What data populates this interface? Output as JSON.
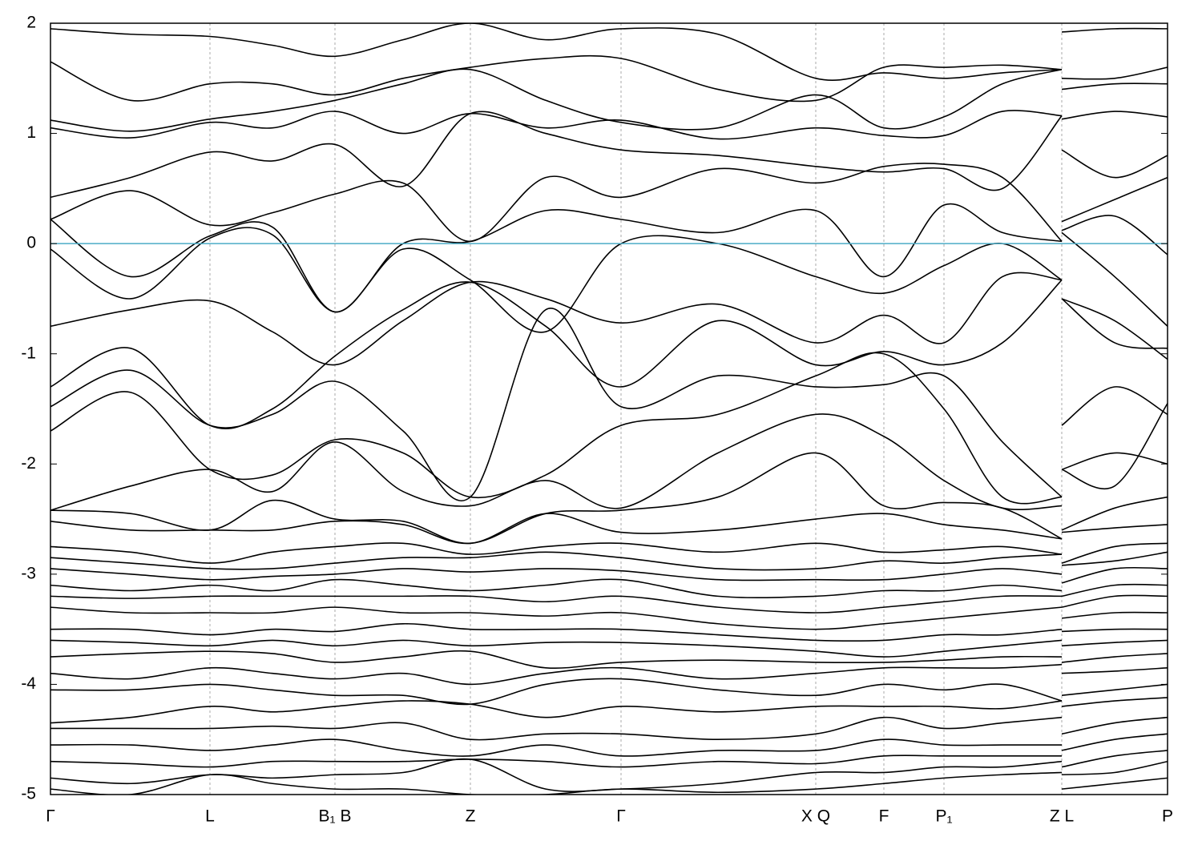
{
  "chart_data": {
    "type": "line",
    "x": [
      0,
      100,
      199,
      277,
      355,
      440,
      524,
      618,
      712,
      833,
      955,
      1040,
      1115,
      1188,
      1262,
      1262,
      1328,
      1394
    ],
    "xlim": [
      0,
      1394
    ],
    "xticks": [
      {
        "value": 0,
        "label": "Γ"
      },
      {
        "value": 199,
        "label": "L"
      },
      {
        "value": 355,
        "label": "B₁ B"
      },
      {
        "value": 524,
        "label": "Z"
      },
      {
        "value": 712,
        "label": "Γ"
      },
      {
        "value": 955,
        "label": "X Q"
      },
      {
        "value": 1040,
        "label": "F"
      },
      {
        "value": 1115,
        "label": "P₁"
      },
      {
        "value": 1262,
        "label": "Z L"
      },
      {
        "value": 1394,
        "label": "P"
      }
    ],
    "ylim": [
      -5,
      2
    ],
    "yticks": [
      -5,
      -4,
      -3,
      -2,
      -1,
      0,
      1,
      2
    ],
    "grid": "x",
    "fermi_level": 0,
    "fermi_color": "#4bacc6",
    "series": [
      {
        "color": "#000000",
        "values": [
          1.95,
          1.9,
          1.88,
          1.8,
          1.7,
          1.85,
          2.0,
          1.85,
          1.95,
          1.9,
          1.5,
          1.55,
          1.5,
          1.55,
          1.58,
          1.92,
          1.95,
          1.95
        ]
      },
      {
        "color": "#000000",
        "values": [
          1.65,
          1.3,
          1.45,
          1.45,
          1.35,
          1.5,
          1.6,
          1.68,
          1.68,
          1.4,
          1.3,
          1.6,
          1.6,
          1.62,
          1.58,
          1.5,
          1.5,
          1.6
        ]
      },
      {
        "color": "#000000",
        "values": [
          1.12,
          1.02,
          1.13,
          1.2,
          1.3,
          1.45,
          1.58,
          1.3,
          1.1,
          1.05,
          1.35,
          1.05,
          1.15,
          1.45,
          1.58,
          1.4,
          1.45,
          1.45
        ]
      },
      {
        "color": "#000000",
        "values": [
          1.05,
          0.96,
          1.1,
          1.05,
          1.2,
          1.0,
          1.18,
          1.05,
          1.12,
          0.95,
          1.05,
          0.98,
          0.98,
          1.2,
          1.16,
          1.13,
          1.2,
          1.15
        ]
      },
      {
        "color": "#000000",
        "values": [
          0.42,
          0.6,
          0.83,
          0.75,
          0.9,
          0.52,
          1.18,
          1.0,
          0.85,
          0.8,
          0.7,
          0.65,
          0.68,
          0.5,
          1.16,
          0.85,
          0.6,
          0.8
        ]
      },
      {
        "color": "#000000",
        "values": [
          0.22,
          0.48,
          0.17,
          0.28,
          0.45,
          0.55,
          0.02,
          0.6,
          0.42,
          0.68,
          0.55,
          0.7,
          0.72,
          0.6,
          0.02,
          0.2,
          0.4,
          0.6
        ]
      },
      {
        "color": "#000000",
        "values": [
          0.22,
          -0.3,
          0.07,
          0.15,
          -0.62,
          0.0,
          0.02,
          0.3,
          0.22,
          0.1,
          0.3,
          -0.3,
          0.35,
          0.1,
          0.02,
          0.12,
          0.25,
          -0.1
        ]
      },
      {
        "color": "#000000",
        "values": [
          -0.05,
          -0.5,
          0.05,
          0.08,
          -0.62,
          -0.05,
          -0.33,
          -0.8,
          0.0,
          0.0,
          -0.3,
          -0.45,
          -0.2,
          0.0,
          -0.33,
          0.1,
          -0.3,
          -0.75
        ]
      },
      {
        "color": "#000000",
        "values": [
          -0.75,
          -0.6,
          -0.52,
          -0.8,
          -1.1,
          -0.7,
          -0.35,
          -0.5,
          -0.72,
          -0.55,
          -0.9,
          -0.65,
          -0.9,
          -0.3,
          -0.33,
          -0.5,
          -0.7,
          -1.05
        ]
      },
      {
        "color": "#000000",
        "values": [
          -1.3,
          -0.95,
          -1.65,
          -1.5,
          -1.02,
          -0.6,
          -0.35,
          -0.75,
          -1.3,
          -0.7,
          -1.1,
          -0.98,
          -1.1,
          -0.9,
          -0.33,
          -0.5,
          -0.9,
          -0.95
        ]
      },
      {
        "color": "#000000",
        "values": [
          -1.48,
          -1.15,
          -1.65,
          -1.55,
          -1.25,
          -1.7,
          -2.3,
          -0.6,
          -1.48,
          -1.2,
          -1.3,
          -1.28,
          -1.2,
          -1.8,
          -2.3,
          -1.65,
          -1.3,
          -1.55
        ]
      },
      {
        "color": "#000000",
        "values": [
          -1.7,
          -1.35,
          -2.05,
          -2.1,
          -1.78,
          -1.9,
          -2.3,
          -2.1,
          -1.65,
          -1.55,
          -1.2,
          -1.0,
          -1.5,
          -2.3,
          -2.3,
          -2.05,
          -1.9,
          -2.0
        ]
      },
      {
        "color": "#000000",
        "values": [
          -2.42,
          -2.2,
          -2.05,
          -2.25,
          -1.8,
          -2.25,
          -2.38,
          -2.15,
          -2.4,
          -1.9,
          -1.55,
          -1.75,
          -2.15,
          -2.4,
          -2.38,
          -2.05,
          -2.2,
          -1.45
        ]
      },
      {
        "color": "#000000",
        "values": [
          -2.42,
          -2.45,
          -2.6,
          -2.33,
          -2.5,
          -2.52,
          -2.72,
          -2.45,
          -2.42,
          -2.3,
          -1.9,
          -2.38,
          -2.35,
          -2.4,
          -2.68,
          -2.6,
          -2.4,
          -2.3
        ]
      },
      {
        "color": "#000000",
        "values": [
          -2.52,
          -2.6,
          -2.6,
          -2.6,
          -2.52,
          -2.55,
          -2.72,
          -2.45,
          -2.62,
          -2.6,
          -2.5,
          -2.45,
          -2.55,
          -2.6,
          -2.68,
          -2.62,
          -2.58,
          -2.55
        ]
      },
      {
        "color": "#000000",
        "values": [
          -2.75,
          -2.8,
          -2.9,
          -2.8,
          -2.75,
          -2.72,
          -2.82,
          -2.75,
          -2.72,
          -2.8,
          -2.72,
          -2.8,
          -2.78,
          -2.75,
          -2.82,
          -2.9,
          -2.75,
          -2.72
        ]
      },
      {
        "color": "#000000",
        "values": [
          -2.85,
          -2.9,
          -2.95,
          -2.95,
          -2.9,
          -2.85,
          -2.85,
          -2.8,
          -2.85,
          -2.95,
          -2.95,
          -2.88,
          -2.9,
          -2.85,
          -2.82,
          -2.92,
          -2.88,
          -2.8
        ]
      },
      {
        "color": "#000000",
        "values": [
          -2.95,
          -3.0,
          -3.05,
          -3.02,
          -3.0,
          -2.95,
          -2.98,
          -2.95,
          -2.97,
          -3.05,
          -3.05,
          -3.05,
          -3.0,
          -2.95,
          -3.0,
          -3.08,
          -2.95,
          -2.95
        ]
      },
      {
        "color": "#000000",
        "values": [
          -3.1,
          -3.15,
          -3.1,
          -3.15,
          -3.05,
          -3.1,
          -3.15,
          -3.1,
          -3.05,
          -3.2,
          -3.2,
          -3.15,
          -3.15,
          -3.1,
          -3.15,
          -3.2,
          -3.1,
          -3.1
        ]
      },
      {
        "color": "#000000",
        "values": [
          -3.2,
          -3.22,
          -3.2,
          -3.2,
          -3.2,
          -3.2,
          -3.2,
          -3.25,
          -3.2,
          -3.3,
          -3.35,
          -3.3,
          -3.25,
          -3.2,
          -3.2,
          -3.3,
          -3.2,
          -3.2
        ]
      },
      {
        "color": "#000000",
        "values": [
          -3.3,
          -3.35,
          -3.35,
          -3.35,
          -3.3,
          -3.35,
          -3.35,
          -3.38,
          -3.35,
          -3.45,
          -3.5,
          -3.45,
          -3.4,
          -3.35,
          -3.3,
          -3.4,
          -3.35,
          -3.35
        ]
      },
      {
        "color": "#000000",
        "values": [
          -3.5,
          -3.5,
          -3.55,
          -3.5,
          -3.52,
          -3.45,
          -3.5,
          -3.5,
          -3.5,
          -3.55,
          -3.6,
          -3.6,
          -3.55,
          -3.55,
          -3.5,
          -3.52,
          -3.5,
          -3.5
        ]
      },
      {
        "color": "#000000",
        "values": [
          -3.6,
          -3.62,
          -3.65,
          -3.6,
          -3.65,
          -3.6,
          -3.65,
          -3.62,
          -3.62,
          -3.65,
          -3.7,
          -3.75,
          -3.7,
          -3.65,
          -3.6,
          -3.65,
          -3.62,
          -3.6
        ]
      },
      {
        "color": "#000000",
        "values": [
          -3.75,
          -3.72,
          -3.7,
          -3.72,
          -3.8,
          -3.75,
          -3.7,
          -3.85,
          -3.8,
          -3.78,
          -3.8,
          -3.8,
          -3.78,
          -3.75,
          -3.75,
          -3.8,
          -3.75,
          -3.72
        ]
      },
      {
        "color": "#000000",
        "values": [
          -3.9,
          -3.95,
          -3.85,
          -3.9,
          -3.95,
          -3.9,
          -4.0,
          -3.9,
          -3.85,
          -3.95,
          -3.9,
          -3.85,
          -3.85,
          -3.85,
          -3.82,
          -3.9,
          -3.88,
          -3.85
        ]
      },
      {
        "color": "#000000",
        "values": [
          -4.05,
          -4.05,
          -4.0,
          -4.05,
          -4.1,
          -4.1,
          -4.18,
          -4.0,
          -3.95,
          -4.05,
          -4.1,
          -4.0,
          -4.05,
          -4.0,
          -4.15,
          -4.1,
          -4.05,
          -4.0
        ]
      },
      {
        "color": "#000000",
        "values": [
          -4.35,
          -4.3,
          -4.2,
          -4.25,
          -4.2,
          -4.15,
          -4.18,
          -4.3,
          -4.2,
          -4.25,
          -4.2,
          -4.2,
          -4.2,
          -4.22,
          -4.15,
          -4.2,
          -4.15,
          -4.12
        ]
      },
      {
        "color": "#000000",
        "values": [
          -4.4,
          -4.4,
          -4.4,
          -4.38,
          -4.4,
          -4.35,
          -4.5,
          -4.45,
          -4.45,
          -4.5,
          -4.45,
          -4.3,
          -4.4,
          -4.35,
          -4.3,
          -4.45,
          -4.35,
          -4.3
        ]
      },
      {
        "color": "#000000",
        "values": [
          -4.55,
          -4.55,
          -4.6,
          -4.55,
          -4.5,
          -4.6,
          -4.65,
          -4.55,
          -4.65,
          -4.6,
          -4.6,
          -4.5,
          -4.55,
          -4.55,
          -4.55,
          -4.6,
          -4.5,
          -4.45
        ]
      },
      {
        "color": "#000000",
        "values": [
          -4.7,
          -4.72,
          -4.75,
          -4.7,
          -4.7,
          -4.7,
          -4.68,
          -4.7,
          -4.75,
          -4.7,
          -4.72,
          -4.65,
          -4.65,
          -4.65,
          -4.65,
          -4.75,
          -4.65,
          -4.6
        ]
      },
      {
        "color": "#000000",
        "values": [
          -4.85,
          -4.9,
          -4.82,
          -4.85,
          -4.82,
          -4.8,
          -4.68,
          -4.95,
          -4.95,
          -4.9,
          -4.8,
          -4.8,
          -4.75,
          -4.75,
          -4.7,
          -4.82,
          -4.8,
          -4.7
        ]
      },
      {
        "color": "#000000",
        "values": [
          -4.95,
          -5.0,
          -4.82,
          -4.9,
          -4.95,
          -4.95,
          -5.0,
          -5.0,
          -4.95,
          -4.98,
          -4.95,
          -4.9,
          -4.85,
          -4.82,
          -4.8,
          -4.95,
          -4.9,
          -4.85
        ]
      }
    ]
  }
}
